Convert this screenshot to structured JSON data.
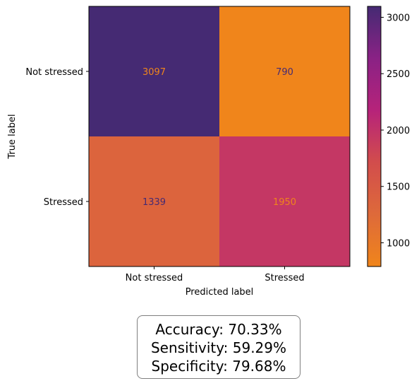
{
  "chart_data": {
    "type": "heatmap",
    "title": "",
    "xlabel": "Predicted label",
    "ylabel": "True label",
    "x_categories": [
      "Not stressed",
      "Stressed"
    ],
    "y_categories": [
      "Not stressed",
      "Stressed"
    ],
    "values": [
      [
        3097,
        790
      ],
      [
        1339,
        1950
      ]
    ],
    "colorbar": {
      "min": 790,
      "max": 3097,
      "ticks": [
        1000,
        1500,
        2000,
        2500,
        3000
      ],
      "colormap": [
        "#f0851b",
        "#de6a3a",
        "#d24d4c",
        "#b6237a",
        "#8a2285",
        "#452a73"
      ]
    },
    "grid": false
  },
  "metrics": {
    "lines": [
      "Accuracy: 70.33%",
      "Sensitivity: 59.29%",
      "Specificity: 79.68%"
    ]
  }
}
